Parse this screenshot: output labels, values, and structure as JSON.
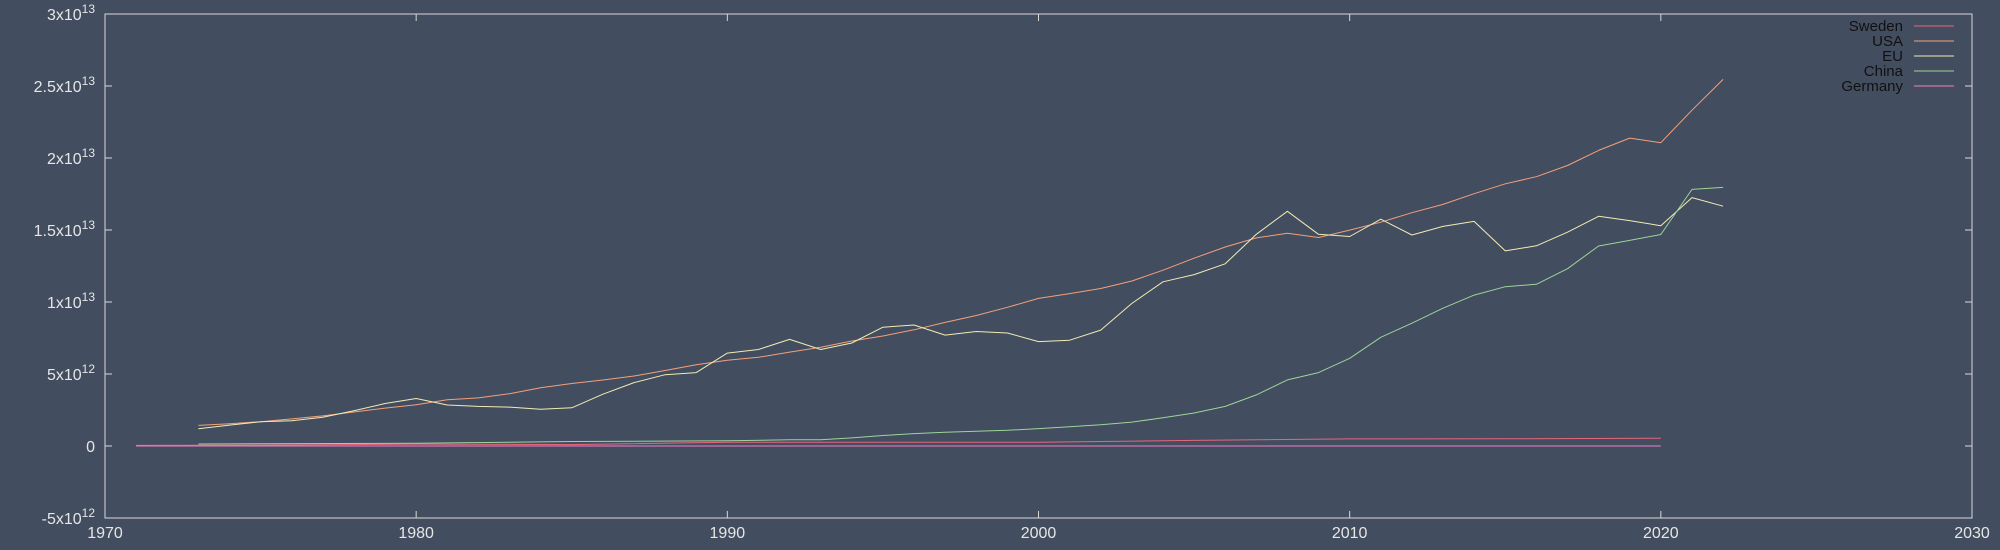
{
  "chart_data": {
    "type": "line",
    "title": "",
    "xlabel": "",
    "ylabel": "",
    "xlim": [
      1970,
      2030
    ],
    "ylim": [
      -5000000000000.0,
      30000000000000.0
    ],
    "grid": false,
    "legend_position": "top-right",
    "x_ticks": [
      {
        "value": 1970,
        "label": "1970"
      },
      {
        "value": 1980,
        "label": "1980"
      },
      {
        "value": 1990,
        "label": "1990"
      },
      {
        "value": 2000,
        "label": "2000"
      },
      {
        "value": 2010,
        "label": "2010"
      },
      {
        "value": 2020,
        "label": "2020"
      },
      {
        "value": 2030,
        "label": "2030"
      }
    ],
    "y_ticks": [
      {
        "value": -5000000000000.0,
        "mantissa": "-5x10",
        "exp": "12"
      },
      {
        "value": 0,
        "mantissa": "0",
        "exp": ""
      },
      {
        "value": 5000000000000.0,
        "mantissa": "5x10",
        "exp": "12"
      },
      {
        "value": 10000000000000.0,
        "mantissa": "1x10",
        "exp": "13"
      },
      {
        "value": 15000000000000.0,
        "mantissa": "1.5x10",
        "exp": "13"
      },
      {
        "value": 20000000000000.0,
        "mantissa": "2x10",
        "exp": "13"
      },
      {
        "value": 25000000000000.0,
        "mantissa": "2.5x10",
        "exp": "13"
      },
      {
        "value": 30000000000000.0,
        "mantissa": "3x10",
        "exp": "13"
      }
    ],
    "series": [
      {
        "name": "Sweden",
        "color": "#e8657c",
        "points": [
          [
            1971,
            40000000000.0
          ],
          [
            1975,
            60000000000.0
          ],
          [
            1980,
            130000000000.0
          ],
          [
            1985,
            100000000000.0
          ],
          [
            1990,
            260000000000.0
          ],
          [
            1995,
            260000000000.0
          ],
          [
            2000,
            260000000000.0
          ],
          [
            2005,
            390000000000.0
          ],
          [
            2010,
            490000000000.0
          ],
          [
            2015,
            500000000000.0
          ],
          [
            2020,
            540000000000.0
          ]
        ]
      },
      {
        "name": "USA",
        "color": "#f4a07c",
        "points": [
          [
            1973,
            1430000000000.0
          ],
          [
            1974,
            1550000000000.0
          ],
          [
            1975,
            1690000000000.0
          ],
          [
            1976,
            1880000000000.0
          ],
          [
            1977,
            2090000000000.0
          ],
          [
            1978,
            2360000000000.0
          ],
          [
            1979,
            2630000000000.0
          ],
          [
            1980,
            2860000000000.0
          ],
          [
            1981,
            3210000000000.0
          ],
          [
            1982,
            3340000000000.0
          ],
          [
            1983,
            3630000000000.0
          ],
          [
            1984,
            4040000000000.0
          ],
          [
            1985,
            4340000000000.0
          ],
          [
            1986,
            4580000000000.0
          ],
          [
            1987,
            4860000000000.0
          ],
          [
            1988,
            5240000000000.0
          ],
          [
            1989,
            5640000000000.0
          ],
          [
            1990,
            5960000000000.0
          ],
          [
            1991,
            6160000000000.0
          ],
          [
            1992,
            6520000000000.0
          ],
          [
            1993,
            6860000000000.0
          ],
          [
            1994,
            7290000000000.0
          ],
          [
            1995,
            7640000000000.0
          ],
          [
            1996,
            8070000000000.0
          ],
          [
            1997,
            8580000000000.0
          ],
          [
            1998,
            9060000000000.0
          ],
          [
            1999,
            9630000000000.0
          ],
          [
            2000,
            10250000000000.0
          ],
          [
            2001,
            10580000000000.0
          ],
          [
            2002,
            10940000000000.0
          ],
          [
            2003,
            11460000000000.0
          ],
          [
            2004,
            12210000000000.0
          ],
          [
            2005,
            13040000000000.0
          ],
          [
            2006,
            13820000000000.0
          ],
          [
            2007,
            14450000000000.0
          ],
          [
            2008,
            14770000000000.0
          ],
          [
            2009,
            14480000000000.0
          ],
          [
            2010,
            14990000000000.0
          ],
          [
            2011,
            15540000000000.0
          ],
          [
            2012,
            16200000000000.0
          ],
          [
            2013,
            16780000000000.0
          ],
          [
            2014,
            17520000000000.0
          ],
          [
            2015,
            18210000000000.0
          ],
          [
            2016,
            18700000000000.0
          ],
          [
            2017,
            19480000000000.0
          ],
          [
            2018,
            20530000000000.0
          ],
          [
            2019,
            21380000000000.0
          ],
          [
            2020,
            21060000000000.0
          ],
          [
            2021,
            23320000000000.0
          ],
          [
            2022,
            25460000000000.0
          ]
        ]
      },
      {
        "name": "EU",
        "color": "#f2ecb4",
        "points": [
          [
            1973,
            1200000000000.0
          ],
          [
            1974,
            1450000000000.0
          ],
          [
            1975,
            1680000000000.0
          ],
          [
            1976,
            1760000000000.0
          ],
          [
            1977,
            2000000000000.0
          ],
          [
            1978,
            2450000000000.0
          ],
          [
            1979,
            2950000000000.0
          ],
          [
            1980,
            3300000000000.0
          ],
          [
            1981,
            2850000000000.0
          ],
          [
            1982,
            2750000000000.0
          ],
          [
            1983,
            2700000000000.0
          ],
          [
            1984,
            2550000000000.0
          ],
          [
            1985,
            2650000000000.0
          ],
          [
            1986,
            3600000000000.0
          ],
          [
            1987,
            4400000000000.0
          ],
          [
            1988,
            4950000000000.0
          ],
          [
            1989,
            5100000000000.0
          ],
          [
            1990,
            6450000000000.0
          ],
          [
            1991,
            6700000000000.0
          ],
          [
            1992,
            7400000000000.0
          ],
          [
            1993,
            6700000000000.0
          ],
          [
            1994,
            7150000000000.0
          ],
          [
            1995,
            8250000000000.0
          ],
          [
            1996,
            8400000000000.0
          ],
          [
            1997,
            7700000000000.0
          ],
          [
            1998,
            7950000000000.0
          ],
          [
            1999,
            7850000000000.0
          ],
          [
            2000,
            7250000000000.0
          ],
          [
            2001,
            7350000000000.0
          ],
          [
            2002,
            8050000000000.0
          ],
          [
            2003,
            9900000000000.0
          ],
          [
            2004,
            11400000000000.0
          ],
          [
            2005,
            11900000000000.0
          ],
          [
            2006,
            12650000000000.0
          ],
          [
            2007,
            14700000000000.0
          ],
          [
            2008,
            16300000000000.0
          ],
          [
            2009,
            14700000000000.0
          ],
          [
            2010,
            14550000000000.0
          ],
          [
            2011,
            15750000000000.0
          ],
          [
            2012,
            14650000000000.0
          ],
          [
            2013,
            15250000000000.0
          ],
          [
            2014,
            15600000000000.0
          ],
          [
            2015,
            13550000000000.0
          ],
          [
            2016,
            13900000000000.0
          ],
          [
            2017,
            14850000000000.0
          ],
          [
            2018,
            15950000000000.0
          ],
          [
            2019,
            15650000000000.0
          ],
          [
            2020,
            15300000000000.0
          ],
          [
            2021,
            17250000000000.0
          ],
          [
            2022,
            16650000000000.0
          ]
        ]
      },
      {
        "name": "China",
        "color": "#9ed49b",
        "points": [
          [
            1973,
            140000000000.0
          ],
          [
            1975,
            160000000000.0
          ],
          [
            1980,
            190000000000.0
          ],
          [
            1985,
            310000000000.0
          ],
          [
            1990,
            360000000000.0
          ],
          [
            1992,
            430000000000.0
          ],
          [
            1993,
            440000000000.0
          ],
          [
            1994,
            560000000000.0
          ],
          [
            1995,
            730000000000.0
          ],
          [
            1996,
            860000000000.0
          ],
          [
            1997,
            960000000000.0
          ],
          [
            1998,
            1030000000000.0
          ],
          [
            1999,
            1090000000000.0
          ],
          [
            2000,
            1210000000000.0
          ],
          [
            2001,
            1340000000000.0
          ],
          [
            2002,
            1470000000000.0
          ],
          [
            2003,
            1660000000000.0
          ],
          [
            2004,
            1960000000000.0
          ],
          [
            2005,
            2290000000000.0
          ],
          [
            2006,
            2750000000000.0
          ],
          [
            2007,
            3550000000000.0
          ],
          [
            2008,
            4590000000000.0
          ],
          [
            2009,
            5100000000000.0
          ],
          [
            2010,
            6090000000000.0
          ],
          [
            2011,
            7550000000000.0
          ],
          [
            2012,
            8530000000000.0
          ],
          [
            2013,
            9570000000000.0
          ],
          [
            2014,
            10480000000000.0
          ],
          [
            2015,
            11060000000000.0
          ],
          [
            2016,
            11230000000000.0
          ],
          [
            2017,
            12310000000000.0
          ],
          [
            2018,
            13890000000000.0
          ],
          [
            2019,
            14280000000000.0
          ],
          [
            2020,
            14690000000000.0
          ],
          [
            2021,
            17820000000000.0
          ],
          [
            2022,
            17960000000000.0
          ]
        ]
      },
      {
        "name": "Germany",
        "color": "#f07fc9",
        "points": [
          [
            1971,
            0.0
          ],
          [
            1975,
            0.0
          ],
          [
            1980,
            0.0
          ],
          [
            1990,
            0.0
          ],
          [
            2000,
            0.0
          ],
          [
            2010,
            0.0
          ],
          [
            2020,
            0.0
          ]
        ]
      }
    ]
  }
}
